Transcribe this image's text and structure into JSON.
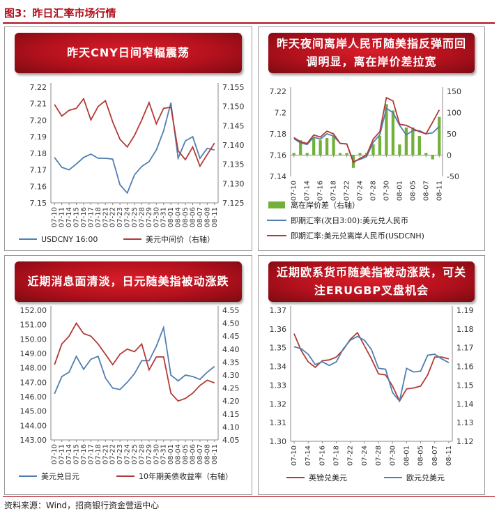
{
  "figure": {
    "title": "图3：昨日汇率市场行情",
    "source": "资料来源：Wind，招商银行资金营运中心"
  },
  "colors": {
    "blue": "#4f7fb0",
    "red": "#b23a36",
    "green": "#71b13a",
    "accent": "#b0101c"
  },
  "chart_data": [
    {
      "type": "line",
      "title": "昨天CNY日间窄幅震荡",
      "x": [
        "07-10",
        "07-11",
        "07-14",
        "07-15",
        "07-16",
        "07-17",
        "07-18",
        "07-21",
        "07-22",
        "07-23",
        "07-24",
        "07-25",
        "07-28",
        "07-29",
        "07-30",
        "07-31",
        "08-01",
        "08-04",
        "08-05",
        "08-06",
        "08-07",
        "08-08",
        "08-11"
      ],
      "left_axis": {
        "ylim": [
          7.15,
          7.22
        ],
        "ticks": [
          "7.15",
          "7.16",
          "7.17",
          "7.18",
          "7.19",
          "7.20",
          "7.21",
          "7.22"
        ]
      },
      "right_axis": {
        "ylim": [
          7.125,
          7.155
        ],
        "ticks": [
          "7.125",
          "7.130",
          "7.135",
          "7.140",
          "7.145",
          "7.150",
          "7.155"
        ]
      },
      "series": [
        {
          "name": "USDCNY 16:00",
          "axis": "left",
          "color": "#4f7fb0",
          "values": [
            7.1775,
            7.1715,
            7.17,
            7.1735,
            7.1775,
            7.1795,
            7.177,
            7.177,
            7.1765,
            7.161,
            7.156,
            7.167,
            7.172,
            7.175,
            7.182,
            7.1935,
            7.2105,
            7.177,
            7.1875,
            7.19,
            7.177,
            7.183,
            7.182
          ]
        },
        {
          "name": "美元中间价（右轴）",
          "axis": "right",
          "color": "#b23a36",
          "values": [
            7.1505,
            7.1475,
            7.149,
            7.1495,
            7.152,
            7.1465,
            7.15,
            7.1515,
            7.146,
            7.1415,
            7.1395,
            7.1425,
            7.1465,
            7.151,
            7.1455,
            7.1495,
            7.1498,
            7.1385,
            7.1362,
            7.1395,
            7.1345,
            7.1375,
            7.1405
          ]
        }
      ]
    },
    {
      "type": "line",
      "title": "昨天夜间离岸人民币随美指反弹而回调明显，离在岸价差拉宽",
      "x": [
        "07-10",
        "07-11",
        "07-14",
        "07-15",
        "07-16",
        "07-17",
        "07-18",
        "07-21",
        "07-22",
        "07-23",
        "07-24",
        "07-25",
        "07-28",
        "07-29",
        "07-30",
        "07-31",
        "08-01",
        "08-04",
        "08-05",
        "08-06",
        "08-07",
        "08-08",
        "08-11"
      ],
      "left_axis": {
        "ylim": [
          7.14,
          7.22
        ],
        "ticks": [
          "7.14",
          "7.16",
          "7.18",
          "7.2",
          "7.22"
        ]
      },
      "right_axis": {
        "ylim": [
          -50,
          150
        ],
        "ticks": [
          "-50",
          "0",
          "50",
          "100",
          "150"
        ]
      },
      "series": [
        {
          "name": "离在岸价差（右轴）",
          "axis": "right",
          "type": "bar",
          "color": "#71b13a",
          "values": [
            5,
            35,
            5,
            40,
            35,
            40,
            45,
            5,
            5,
            -30,
            5,
            5,
            25,
            45,
            120,
            105,
            25,
            65,
            65,
            45,
            5,
            -10,
            90
          ]
        },
        {
          "name": "即期汇率(次日3:00):美元兑人民币",
          "axis": "left",
          "color": "#4f7fb0",
          "values": [
            7.1755,
            7.1715,
            7.17,
            7.177,
            7.175,
            7.18,
            7.178,
            7.171,
            7.1705,
            7.154,
            7.156,
            7.1585,
            7.172,
            7.179,
            7.204,
            7.2,
            7.188,
            7.179,
            7.183,
            7.183,
            7.18,
            7.181,
            7.187
          ]
        },
        {
          "name": "即期汇率:美元兑离岸人民币(USDCNH)",
          "axis": "left",
          "color": "#b23a36",
          "values": [
            7.1765,
            7.1725,
            7.171,
            7.179,
            7.177,
            7.1825,
            7.18,
            7.171,
            7.1705,
            7.153,
            7.157,
            7.16,
            7.175,
            7.182,
            7.214,
            7.211,
            7.189,
            7.188,
            7.185,
            7.182,
            7.18,
            7.191,
            7.2025
          ]
        }
      ]
    },
    {
      "type": "line",
      "title": "近期消息面清淡，日元随美指被动涨跌",
      "x": [
        "07-10",
        "07-11",
        "07-14",
        "07-15",
        "07-16",
        "07-17",
        "07-18",
        "07-21",
        "07-22",
        "07-23",
        "07-24",
        "07-25",
        "07-28",
        "07-29",
        "07-30",
        "07-31",
        "08-01",
        "08-04",
        "08-05",
        "08-06",
        "08-07",
        "08-08",
        "08-11"
      ],
      "left_axis": {
        "ylim": [
          143.0,
          152.0
        ],
        "ticks": [
          "143.00",
          "144.00",
          "145.00",
          "146.00",
          "147.00",
          "148.00",
          "149.00",
          "150.00",
          "151.00",
          "152.00"
        ]
      },
      "right_axis": {
        "ylim": [
          4.05,
          4.55
        ],
        "ticks": [
          "4.05",
          "4.10",
          "4.15",
          "4.20",
          "4.25",
          "4.30",
          "4.35",
          "4.40",
          "4.45",
          "4.50",
          "4.55"
        ]
      },
      "series": [
        {
          "name": "美元兑日元",
          "axis": "left",
          "color": "#4f7fb0",
          "values": [
            146.2,
            147.4,
            147.7,
            148.8,
            147.9,
            148.6,
            148.8,
            147.3,
            146.6,
            146.5,
            147.0,
            147.6,
            148.5,
            148.5,
            149.5,
            150.8,
            147.5,
            147.1,
            147.5,
            147.4,
            147.2,
            147.7,
            148.1
          ]
        },
        {
          "name": "10年期美债收益率（右轴）",
          "axis": "right",
          "color": "#b23a36",
          "values": [
            4.34,
            4.42,
            4.45,
            4.5,
            4.46,
            4.45,
            4.42,
            4.38,
            4.34,
            4.38,
            4.4,
            4.39,
            4.42,
            4.32,
            4.37,
            4.37,
            4.23,
            4.2,
            4.21,
            4.23,
            4.26,
            4.28,
            4.27
          ]
        }
      ]
    },
    {
      "type": "line",
      "title": "近期欧系货币随美指被动涨跌，可关注ERUGBP叉盘机会",
      "x": [
        "07-10",
        "07-11",
        "07-14",
        "07-15",
        "07-16",
        "07-17",
        "07-18",
        "07-21",
        "07-22",
        "07-23",
        "07-24",
        "07-25",
        "07-28",
        "07-29",
        "07-30",
        "07-31",
        "08-01",
        "08-04",
        "08-05",
        "08-06",
        "08-07",
        "08-08",
        "08-11"
      ],
      "left_axis": {
        "ylim": [
          1.3,
          1.37
        ],
        "ticks": [
          "1.30",
          "1.31",
          "1.32",
          "1.33",
          "1.34",
          "1.35",
          "1.36",
          "1.37"
        ]
      },
      "right_axis": {
        "ylim": [
          1.12,
          1.19
        ],
        "ticks": [
          "1.12",
          "1.13",
          "1.14",
          "1.15",
          "1.16",
          "1.17",
          "1.18",
          "1.19"
        ]
      },
      "series": [
        {
          "name": "英镑兑美元",
          "axis": "left",
          "color": "#b23a36",
          "values": [
            1.3575,
            1.3485,
            1.3425,
            1.3395,
            1.343,
            1.3435,
            1.345,
            1.349,
            1.3545,
            1.358,
            1.351,
            1.344,
            1.336,
            1.3355,
            1.3295,
            1.3215,
            1.328,
            1.3285,
            1.3295,
            1.3355,
            1.345,
            1.345,
            1.344
          ]
        },
        {
          "name": "欧元兑美元",
          "axis": "right",
          "color": "#4f7fb0",
          "values": [
            1.1705,
            1.1695,
            1.1665,
            1.161,
            1.1625,
            1.1605,
            1.1625,
            1.1695,
            1.174,
            1.176,
            1.174,
            1.169,
            1.159,
            1.1585,
            1.146,
            1.1415,
            1.159,
            1.157,
            1.1575,
            1.166,
            1.1665,
            1.164,
            1.162
          ]
        }
      ]
    }
  ]
}
